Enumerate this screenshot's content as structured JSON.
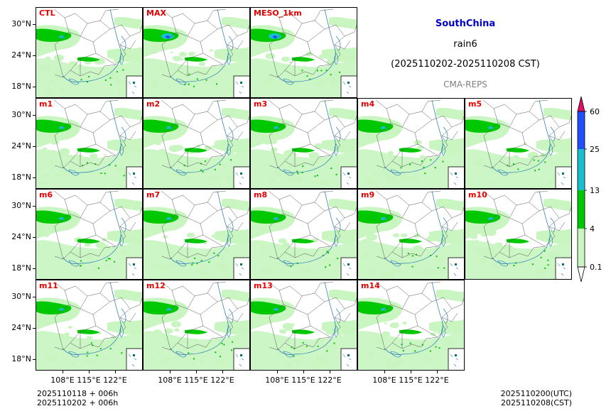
{
  "header": {
    "region": "SouthChina",
    "variable": "rain6",
    "period": "(2025110202-2025110208 CST)",
    "system": "CMA-REPS"
  },
  "panels": [
    {
      "label": "CTL"
    },
    {
      "label": "MAX"
    },
    {
      "label": "MESO_1km"
    },
    {
      "label": "m1"
    },
    {
      "label": "m2"
    },
    {
      "label": "m3"
    },
    {
      "label": "m4"
    },
    {
      "label": "m5"
    },
    {
      "label": "m6"
    },
    {
      "label": "m7"
    },
    {
      "label": "m8"
    },
    {
      "label": "m9"
    },
    {
      "label": "m10"
    },
    {
      "label": "m11"
    },
    {
      "label": "m12"
    },
    {
      "label": "m13"
    },
    {
      "label": "m14"
    }
  ],
  "axes": {
    "lat_labels": [
      "30°N",
      "24°N",
      "18°N"
    ],
    "lon_labels": [
      "108°E",
      "115°E",
      "122°E"
    ]
  },
  "colorbar": {
    "levels": [
      "60",
      "25",
      "13",
      "4",
      "0.1"
    ],
    "colors": {
      "over": "#e0106b",
      "band_25_60": "#1f4fff",
      "band_13_25": "#19bfcc",
      "band_4_13": "#00c800",
      "band_01_4": "#c8f5c0",
      "under": "#ffffff"
    }
  },
  "footer": {
    "init_utc": "2025110118  +  006h",
    "init_cst": "2025110202  +  006h",
    "valid_utc": "2025110200(UTC)",
    "valid_cst": "2025110208(CST)"
  }
}
